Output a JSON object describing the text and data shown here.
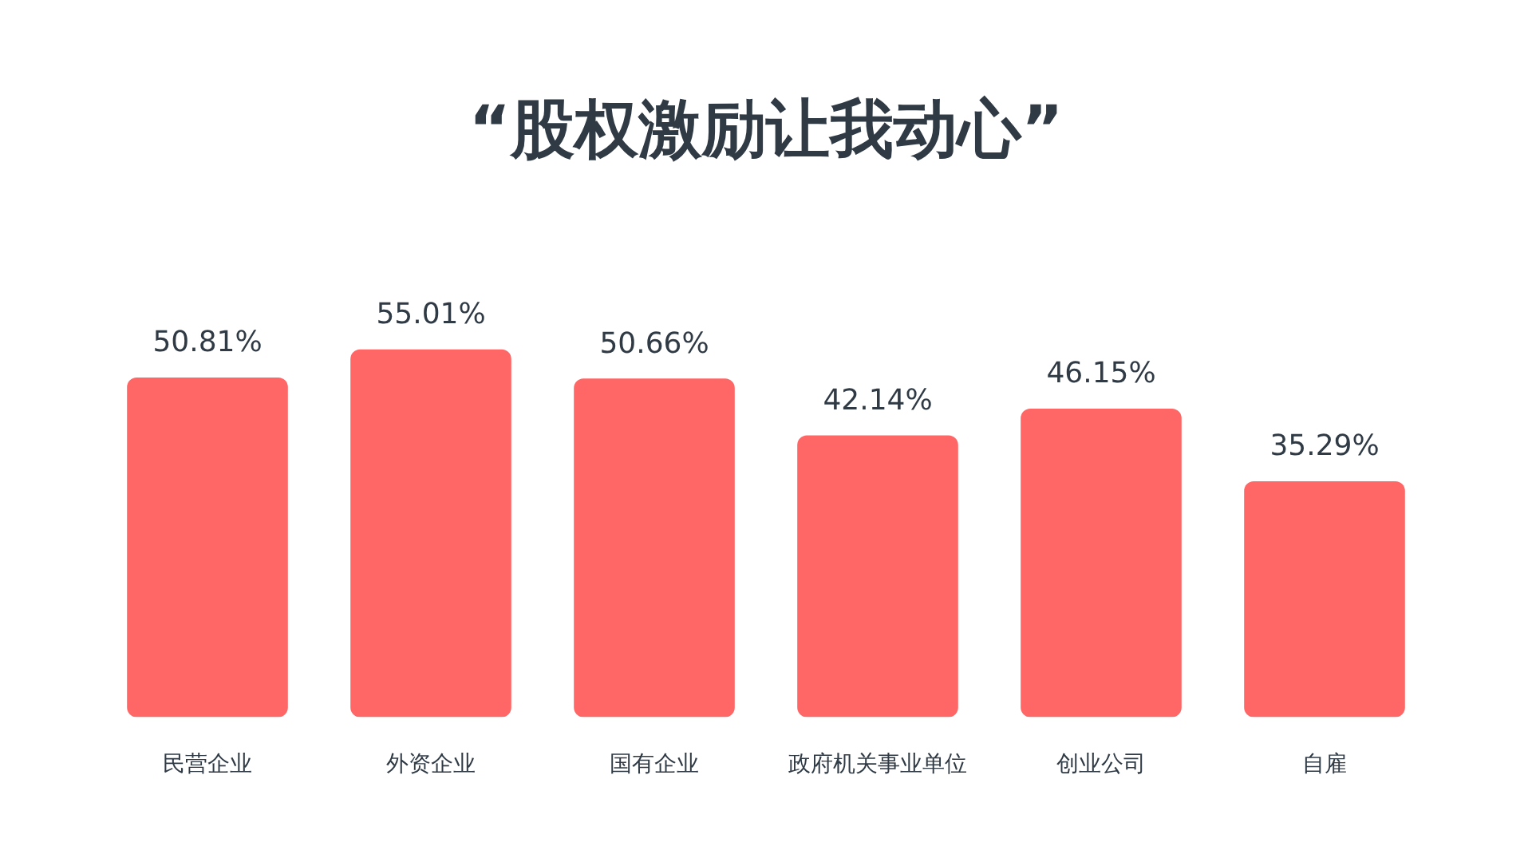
{
  "chart_data": {
    "type": "bar",
    "title": "“股权激励让我动心”",
    "categories": [
      "民营企业",
      "外资企业",
      "国有企业",
      "政府机关事业单位",
      "创业公司",
      "自雇"
    ],
    "values": [
      50.81,
      55.01,
      50.66,
      42.14,
      46.15,
      35.29
    ],
    "value_labels": [
      "50.81%",
      "55.01%",
      "50.66%",
      "42.14%",
      "46.15%",
      "35.29%"
    ],
    "color": "#ff6666",
    "grid": false,
    "legend": false,
    "tick_labels": "x"
  }
}
